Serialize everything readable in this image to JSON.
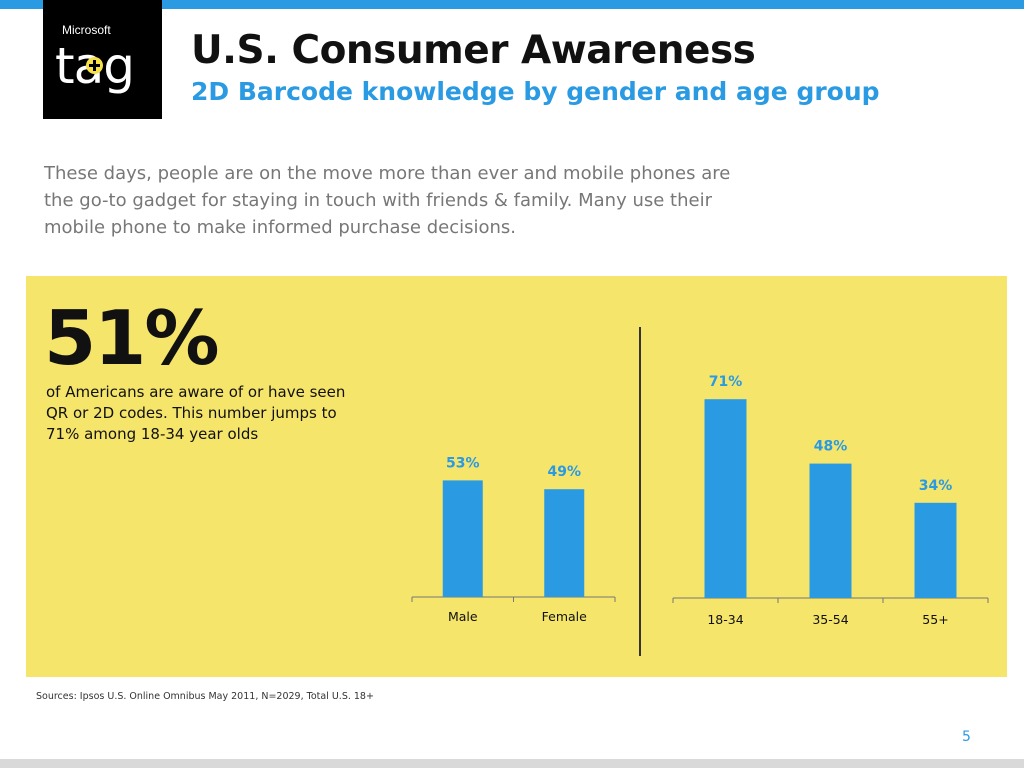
{
  "header": {
    "logo_brand": "Microsoft",
    "logo_mark": "tag",
    "title": "U.S. Consumer Awareness",
    "subtitle": "2D Barcode knowledge by gender and age group"
  },
  "intro_text": "These days, people are on the move more than ever and mobile phones are the go-to gadget for staying in touch with friends & family.  Many use their mobile phone to make informed purchase decisions.",
  "highlight": {
    "stat": "51%",
    "description": "of Americans are aware of or have seen QR or 2D codes. This number jumps to 71% among 18-34 year olds"
  },
  "chart_data": [
    {
      "type": "bar",
      "title": "",
      "categories": [
        "Male",
        "Female"
      ],
      "values": [
        53,
        49
      ],
      "labels": [
        "53%",
        "49%"
      ],
      "ylim": [
        0,
        100
      ]
    },
    {
      "type": "bar",
      "title": "",
      "categories": [
        "18-34",
        "35-54",
        "55+"
      ],
      "values": [
        71,
        48,
        34
      ],
      "labels": [
        "71%",
        "48%",
        "34%"
      ],
      "ylim": [
        0,
        100
      ]
    }
  ],
  "colors": {
    "accent": "#2a9ae3",
    "panel": "#f5e56b",
    "bar": "#2a9ae3"
  },
  "footer": {
    "source": "Sources: Ipsos U.S. Online Omnibus May 2011, N=2029, Total U.S. 18+",
    "page_number": "5"
  }
}
